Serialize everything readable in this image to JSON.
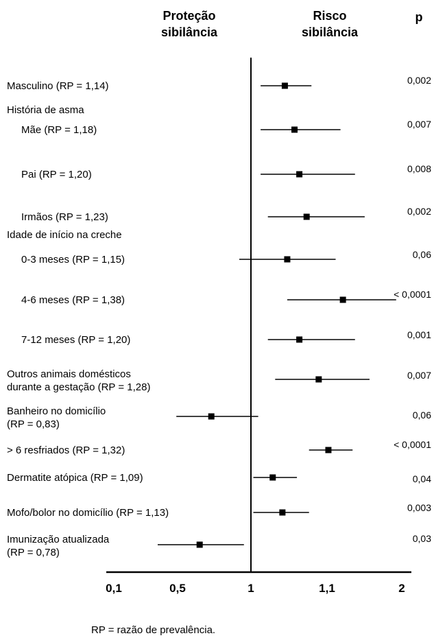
{
  "chart_data": {
    "type": "forest",
    "headers": {
      "protection": [
        "Proteção",
        "sibilância"
      ],
      "risk": [
        "Risco",
        "sibilância"
      ],
      "p": "p"
    },
    "reference_value": 1,
    "x_ticks": [
      {
        "value": 0.1,
        "label": "0,1"
      },
      {
        "value": 0.5,
        "label": "0,5"
      },
      {
        "value": 1,
        "label": "1"
      },
      {
        "value": 1.1,
        "label": "1,1"
      },
      {
        "value": 2,
        "label": "2"
      }
    ],
    "rows": [
      {
        "label": [
          "Masculino (RP = 1,14)"
        ],
        "rp": 1.14,
        "ci": [
          1.04,
          1.25
        ],
        "p": "0,002",
        "indent": false
      },
      {
        "header": "História de asma"
      },
      {
        "label": [
          "Mãe (RP = 1,18)"
        ],
        "rp": 1.18,
        "ci": [
          1.04,
          1.37
        ],
        "p": "0,007",
        "indent": true
      },
      {
        "label": [
          "Pai (RP = 1,20)"
        ],
        "rp": 1.2,
        "ci": [
          1.04,
          1.43
        ],
        "p": "0,008",
        "indent": true
      },
      {
        "label": [
          "Irmãos (RP = 1,23)"
        ],
        "rp": 1.23,
        "ci": [
          1.07,
          1.47
        ],
        "p": "0,002",
        "indent": true
      },
      {
        "header": "Idade de início na creche"
      },
      {
        "label": [
          "0-3 meses (RP = 1,15)"
        ],
        "rp": 1.15,
        "ci": [
          0.95,
          1.35
        ],
        "p": "0,06",
        "indent": true
      },
      {
        "label": [
          "4-6 meses (RP = 1,38)"
        ],
        "rp": 1.38,
        "ci": [
          1.15,
          1.6
        ],
        "p": "< 0,0001",
        "indent": true
      },
      {
        "label": [
          "7-12 meses (RP = 1,20)"
        ],
        "rp": 1.2,
        "ci": [
          1.07,
          1.43
        ],
        "p": "0,001",
        "indent": true
      },
      {
        "label": [
          "Outros animais domésticos",
          "durante a gestação (RP = 1,28)"
        ],
        "rp": 1.28,
        "ci": [
          1.1,
          1.49
        ],
        "p": "0,007",
        "indent": false
      },
      {
        "label": [
          "Banheiro no domicílio",
          "(RP = 0,83)"
        ],
        "rp": 0.83,
        "ci": [
          0.68,
          1.03
        ],
        "p": "0,06",
        "indent": false
      },
      {
        "label": [
          "> 6 resfriados (RP = 1,32)"
        ],
        "rp": 1.32,
        "ci": [
          1.24,
          1.42
        ],
        "p": "< 0,0001",
        "indent": false
      },
      {
        "label": [
          "Dermatite atópica (RP = 1,09)"
        ],
        "rp": 1.09,
        "ci": [
          1.01,
          1.19
        ],
        "p": "0,04",
        "indent": false
      },
      {
        "label": [
          "Mofo/bolor no domicílio (RP = 1,13)"
        ],
        "rp": 1.13,
        "ci": [
          1.01,
          1.24
        ],
        "p": "0,003",
        "indent": false
      },
      {
        "label": [
          "Imunização atualizada",
          "(RP = 0,78)"
        ],
        "rp": 0.78,
        "ci": [
          0.6,
          0.97
        ],
        "p": "0,03",
        "indent": false
      }
    ],
    "footnote": "RP = razão de prevalência."
  }
}
